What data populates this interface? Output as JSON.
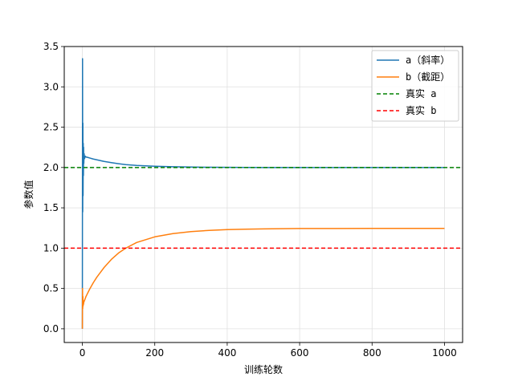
{
  "chart_data": {
    "type": "line",
    "title": "",
    "xlabel": "训练轮数",
    "ylabel": "参数值",
    "xlim": [
      -50,
      1050
    ],
    "ylim": [
      -0.17,
      3.5
    ],
    "xticks": [
      0,
      200,
      400,
      600,
      800,
      1000
    ],
    "yticks": [
      0.0,
      0.5,
      1.0,
      1.5,
      2.0,
      2.5,
      3.0,
      3.5
    ],
    "grid": true,
    "legend_position": "top-right",
    "series": [
      {
        "name": "a（斜率）",
        "color": "#1f77b4",
        "style": "solid",
        "x": [
          0,
          0.5,
          1,
          1.5,
          2,
          2.5,
          3,
          3.5,
          4,
          5,
          6,
          8,
          10,
          15,
          20,
          30,
          40,
          50,
          60,
          80,
          100,
          120,
          150,
          200,
          250,
          300,
          350,
          400,
          450,
          500,
          600,
          700,
          800,
          900,
          1000
        ],
        "y": [
          0.0,
          3.35,
          1.45,
          2.55,
          1.65,
          2.3,
          1.9,
          2.25,
          2.05,
          2.17,
          2.11,
          2.14,
          2.13,
          2.125,
          2.118,
          2.105,
          2.095,
          2.085,
          2.075,
          2.06,
          2.047,
          2.036,
          2.025,
          2.015,
          2.009,
          2.005,
          2.003,
          2.002,
          2.001,
          2.0,
          2.0,
          2.0,
          2.0,
          2.0,
          2.0
        ]
      },
      {
        "name": "b（截距）",
        "color": "#ff7f0e",
        "style": "solid",
        "x": [
          0,
          0.5,
          1,
          1.5,
          2,
          2.5,
          3,
          4,
          5,
          10,
          20,
          30,
          40,
          60,
          80,
          100,
          120,
          150,
          200,
          250,
          300,
          350,
          400,
          450,
          500,
          600,
          700,
          800,
          900,
          1000
        ],
        "y": [
          0.0,
          0.5,
          0.25,
          0.4,
          0.28,
          0.35,
          0.3,
          0.33,
          0.34,
          0.4,
          0.49,
          0.57,
          0.64,
          0.76,
          0.86,
          0.94,
          1.0,
          1.07,
          1.14,
          1.18,
          1.205,
          1.22,
          1.23,
          1.235,
          1.239,
          1.243,
          1.244,
          1.245,
          1.245,
          1.245
        ]
      },
      {
        "name": "真实 a",
        "color": "#008000",
        "style": "dashed",
        "y_constant": 2.0
      },
      {
        "name": "真实 b",
        "color": "#ff0000",
        "style": "dashed",
        "y_constant": 1.0
      }
    ]
  }
}
